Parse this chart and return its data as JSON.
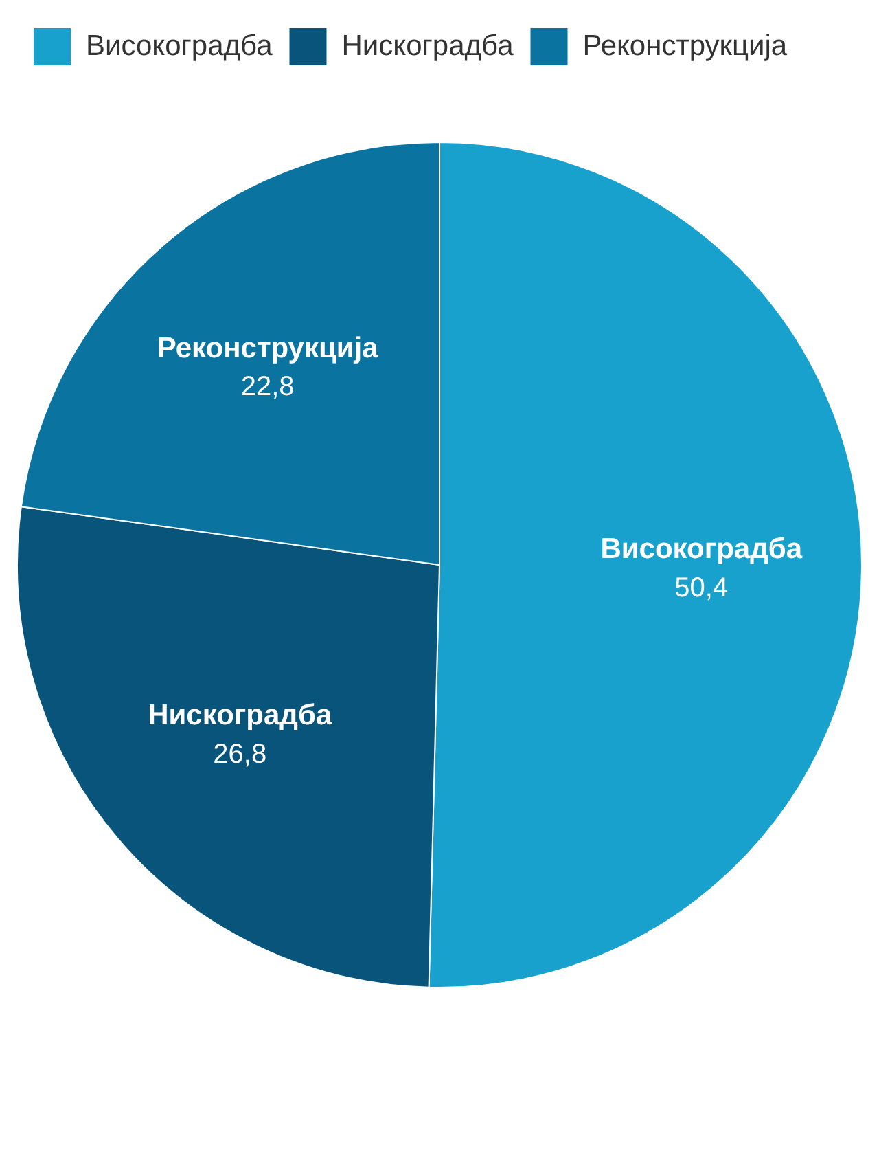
{
  "chart_data": {
    "type": "pie",
    "categories": [
      "Високоградба",
      "Нискоградба",
      "Реконструкција"
    ],
    "values": [
      50.4,
      26.8,
      22.8
    ],
    "value_labels": [
      "50,4",
      "26,8",
      "22,8"
    ],
    "colors": [
      "#18a1cd",
      "#09547a",
      "#0a73a0"
    ],
    "legend": "top left"
  }
}
